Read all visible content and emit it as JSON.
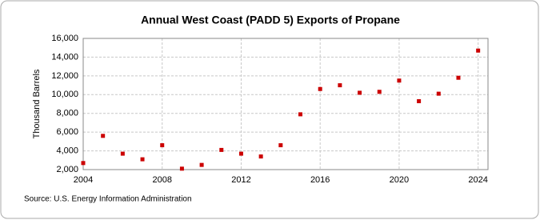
{
  "chart_data": {
    "type": "scatter",
    "title": "Annual West Coast (PADD 5) Exports of Propane",
    "y_label": "Thousand Barrels",
    "source": "Source: U.S. Energy Information Administration",
    "x": [
      2004,
      2005,
      2006,
      2007,
      2008,
      2009,
      2010,
      2011,
      2012,
      2013,
      2014,
      2015,
      2016,
      2017,
      2018,
      2019,
      2020,
      2021,
      2022,
      2023,
      2024
    ],
    "values": [
      2700,
      5600,
      3700,
      3100,
      4600,
      2100,
      2500,
      4100,
      3700,
      3400,
      4600,
      7900,
      10600,
      11000,
      10200,
      10300,
      11500,
      9300,
      10100,
      11800,
      14700
    ],
    "color": "#cc0000",
    "xlim": [
      2004,
      2024.5
    ],
    "xticks": [
      2004,
      2008,
      2012,
      2016,
      2020,
      2024
    ],
    "ylim": [
      2000,
      16000
    ],
    "yticks": [
      {
        "value": 2000,
        "label": "2,000"
      },
      {
        "value": 4000,
        "label": "4,000"
      },
      {
        "value": 6000,
        "label": "6,000"
      },
      {
        "value": 8000,
        "label": "8,000"
      },
      {
        "value": 10000,
        "label": "10,000"
      },
      {
        "value": 12000,
        "label": "12,000"
      },
      {
        "value": 14000,
        "label": "14,000"
      },
      {
        "value": 16000,
        "label": "16,000"
      }
    ],
    "grid": true
  }
}
